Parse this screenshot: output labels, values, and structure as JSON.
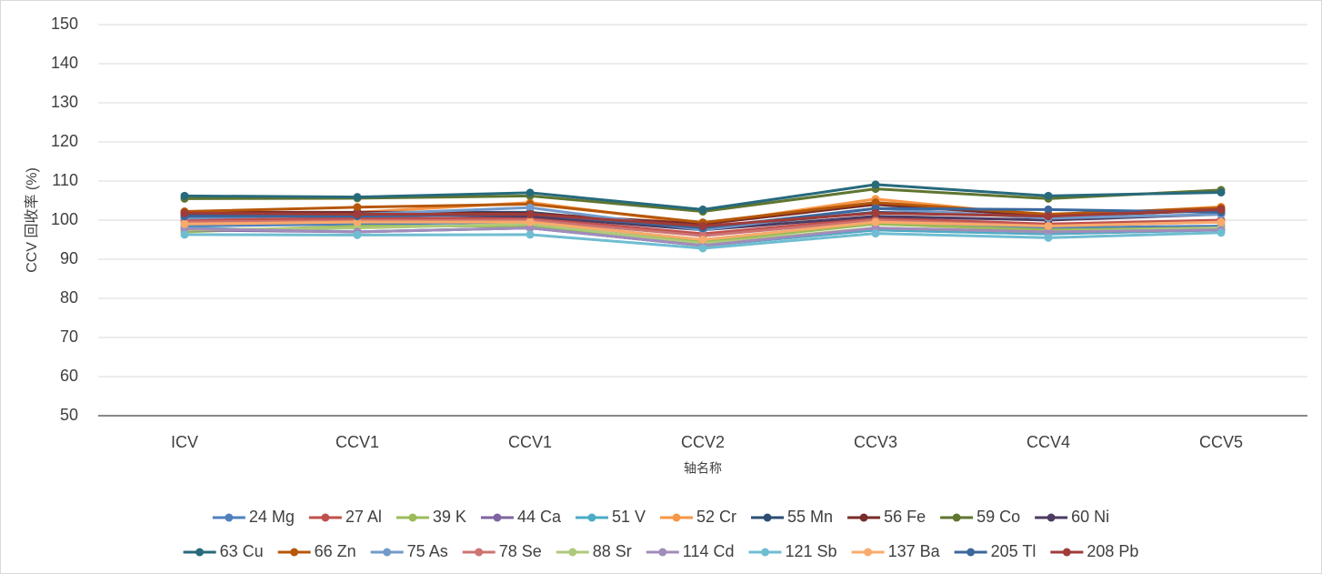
{
  "chart_data": {
    "type": "line",
    "y_label": "CCV 回收率 (%)",
    "x_label": "轴名称",
    "categories": [
      "ICV",
      "CCV1",
      "CCV1",
      "CCV2",
      "CCV3",
      "CCV4",
      "CCV5"
    ],
    "ylim": [
      50,
      150
    ],
    "yticks": [
      50,
      60,
      70,
      80,
      90,
      100,
      110,
      120,
      130,
      140,
      150
    ],
    "grid": true,
    "legend": "bottom",
    "series": [
      {
        "name": "24 Mg",
        "color": "#4f81bd",
        "values": [
          98.5,
          99,
          99.5,
          95,
          99.5,
          98,
          98.5
        ]
      },
      {
        "name": "27 Al",
        "color": "#c0504d",
        "values": [
          100,
          100.5,
          100.5,
          96.5,
          100.5,
          99,
          100
        ]
      },
      {
        "name": "39 K",
        "color": "#9bbb59",
        "values": [
          97,
          98.5,
          98.5,
          94.5,
          99,
          97.5,
          98
        ]
      },
      {
        "name": "44 Ca",
        "color": "#8064a2",
        "values": [
          97.5,
          97,
          98,
          93.5,
          97.5,
          96.5,
          97.5
        ]
      },
      {
        "name": "51 V",
        "color": "#4bacc6",
        "values": [
          98,
          97,
          98,
          93.5,
          97.5,
          96.5,
          97.5
        ]
      },
      {
        "name": "52 Cr",
        "color": "#f79646",
        "values": [
          101.5,
          102,
          104.5,
          99,
          105.4,
          101,
          103.4
        ]
      },
      {
        "name": "55 Mn",
        "color": "#2c4d75",
        "values": [
          101.3,
          102,
          102,
          98,
          102,
          101,
          102.5
        ]
      },
      {
        "name": "56 Fe",
        "color": "#772c2a",
        "values": [
          102,
          102,
          101.7,
          99,
          104,
          101,
          102.5
        ]
      },
      {
        "name": "59 Co",
        "color": "#5f7530",
        "values": [
          105.5,
          105.6,
          106.2,
          102.2,
          108,
          105.5,
          107.7
        ]
      },
      {
        "name": "60 Ni",
        "color": "#4d3b62",
        "values": [
          101,
          101.5,
          101,
          97.5,
          101,
          100,
          101.5
        ]
      },
      {
        "name": "63 Cu",
        "color": "#276a7c",
        "values": [
          106.2,
          105.9,
          107,
          102.7,
          109.1,
          106.2,
          107.1
        ]
      },
      {
        "name": "66 Zn",
        "color": "#b65708",
        "values": [
          102.2,
          103.3,
          104.1,
          99.4,
          104.5,
          101.5,
          103.1
        ]
      },
      {
        "name": "75 As",
        "color": "#729aca",
        "values": [
          100.5,
          101.5,
          103.2,
          97.5,
          103,
          100.5,
          101.5
        ]
      },
      {
        "name": "78 Se",
        "color": "#cd7371",
        "values": [
          99.5,
          99.8,
          100,
          96,
          100,
          98.5,
          99.5
        ]
      },
      {
        "name": "88 Sr",
        "color": "#afc97a",
        "values": [
          97.5,
          98,
          99,
          94,
          98,
          97,
          98
        ]
      },
      {
        "name": "114 Cd",
        "color": "#a18cbb",
        "values": [
          97.8,
          97,
          98,
          93.5,
          98,
          97,
          97.5
        ]
      },
      {
        "name": "121 Sb",
        "color": "#6fbdd1",
        "values": [
          96.3,
          96.2,
          96.3,
          92.8,
          96.6,
          95.5,
          96.8
        ]
      },
      {
        "name": "137 Ba",
        "color": "#f9ab6b",
        "values": [
          99,
          99.5,
          99.5,
          95,
          99.5,
          98.5,
          99.5
        ]
      },
      {
        "name": "205 Tl",
        "color": "#3a679c",
        "values": [
          101,
          101,
          101.5,
          98,
          103,
          102.7,
          102
        ]
      },
      {
        "name": "208 Pb",
        "color": "#9f3b38",
        "values": [
          101.8,
          101.5,
          101.5,
          98.5,
          101.8,
          101,
          102.7
        ]
      }
    ]
  }
}
